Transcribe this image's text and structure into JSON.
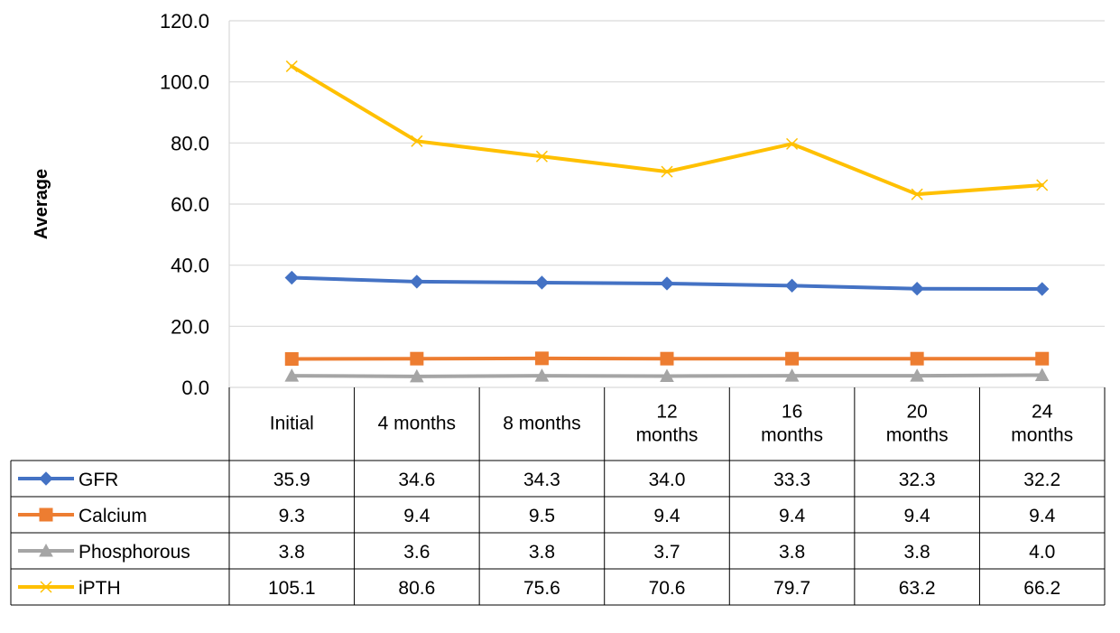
{
  "chart_data": {
    "type": "line",
    "title": "",
    "xlabel": "",
    "ylabel": "Average",
    "ylim": [
      0,
      120
    ],
    "yticks": [
      "0.0",
      "20.0",
      "40.0",
      "60.0",
      "80.0",
      "100.0",
      "120.0"
    ],
    "grid": true,
    "legend": "data-table",
    "categories": [
      [
        "Initial"
      ],
      [
        "4 months"
      ],
      [
        "8 months"
      ],
      [
        "12",
        "months"
      ],
      [
        "16",
        "months"
      ],
      [
        "20",
        "months"
      ],
      [
        "24",
        "months"
      ]
    ],
    "series": [
      {
        "name": "GFR",
        "color": "#4472C4",
        "marker": "diamond",
        "values": [
          35.9,
          34.6,
          34.3,
          34.0,
          33.3,
          32.3,
          32.2
        ],
        "labels": [
          "35.9",
          "34.6",
          "34.3",
          "34.0",
          "33.3",
          "32.3",
          "32.2"
        ]
      },
      {
        "name": "Calcium",
        "color": "#ED7D31",
        "marker": "square",
        "values": [
          9.3,
          9.4,
          9.5,
          9.4,
          9.4,
          9.4,
          9.4
        ],
        "labels": [
          "9.3",
          "9.4",
          "9.5",
          "9.4",
          "9.4",
          "9.4",
          "9.4"
        ]
      },
      {
        "name": "Phosphorous",
        "color": "#A5A5A5",
        "marker": "triangle",
        "values": [
          3.8,
          3.6,
          3.8,
          3.7,
          3.8,
          3.8,
          4.0
        ],
        "labels": [
          "3.8",
          "3.6",
          "3.8",
          "3.7",
          "3.8",
          "3.8",
          "4.0"
        ]
      },
      {
        "name": "iPTH",
        "color": "#FFC000",
        "marker": "x",
        "values": [
          105.1,
          80.6,
          75.6,
          70.6,
          79.7,
          63.2,
          66.2
        ],
        "labels": [
          "105.1",
          "80.6",
          "75.6",
          "70.6",
          "79.7",
          "63.2",
          "66.2"
        ]
      }
    ]
  }
}
